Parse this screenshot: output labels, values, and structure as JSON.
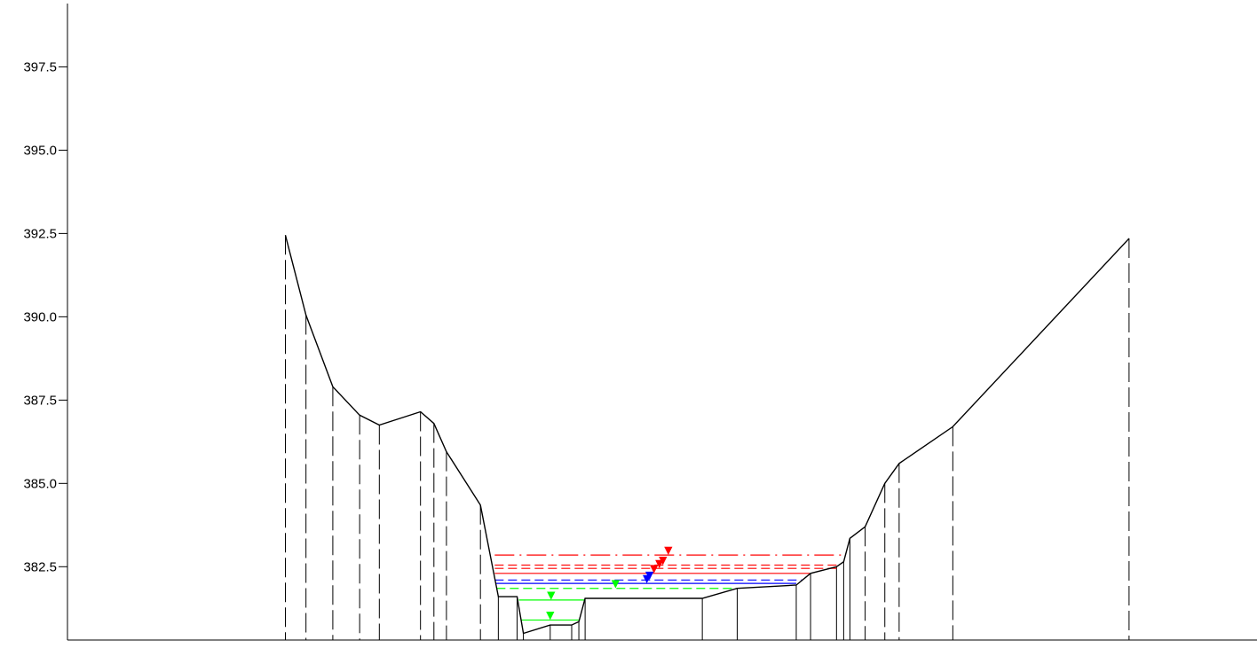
{
  "chart_data": {
    "type": "area",
    "title": "",
    "xlabel": "",
    "ylabel": "",
    "ylim": [
      380.3,
      399.4
    ],
    "xlim": [
      -65,
      1340
    ],
    "grid": false,
    "yticks": [
      {
        "value": 382.5,
        "label": "382.5"
      },
      {
        "value": 385.0,
        "label": "385.0"
      },
      {
        "value": 387.5,
        "label": "387.5"
      },
      {
        "value": 390.0,
        "label": "390.0"
      },
      {
        "value": 392.5,
        "label": "392.5"
      },
      {
        "value": 395.0,
        "label": "395.0"
      },
      {
        "value": 397.5,
        "label": "397.5"
      }
    ],
    "ground_profile": {
      "color": "#000000",
      "points": [
        {
          "x": 254,
          "y": 392.45
        },
        {
          "x": 277,
          "y": 390.05
        },
        {
          "x": 307,
          "y": 387.9
        },
        {
          "x": 337,
          "y": 387.05
        },
        {
          "x": 359,
          "y": 386.75
        },
        {
          "x": 405,
          "y": 387.15
        },
        {
          "x": 420,
          "y": 386.8
        },
        {
          "x": 434,
          "y": 385.95
        },
        {
          "x": 472,
          "y": 384.35
        },
        {
          "x": 492,
          "y": 381.6
        },
        {
          "x": 513,
          "y": 381.6
        },
        {
          "x": 520,
          "y": 380.5
        },
        {
          "x": 550,
          "y": 380.75
        },
        {
          "x": 574,
          "y": 380.75
        },
        {
          "x": 582,
          "y": 380.85
        },
        {
          "x": 589,
          "y": 381.55
        },
        {
          "x": 720,
          "y": 381.55
        },
        {
          "x": 759,
          "y": 381.85
        },
        {
          "x": 825,
          "y": 381.95
        },
        {
          "x": 841,
          "y": 382.3
        },
        {
          "x": 870,
          "y": 382.5
        },
        {
          "x": 878,
          "y": 382.65
        },
        {
          "x": 885,
          "y": 383.35
        },
        {
          "x": 902,
          "y": 383.7
        },
        {
          "x": 924,
          "y": 385.0
        },
        {
          "x": 940,
          "y": 385.6
        },
        {
          "x": 1000,
          "y": 386.7
        },
        {
          "x": 1197,
          "y": 392.35
        }
      ]
    },
    "station_lines": [
      {
        "x": 254,
        "style": "dashdot"
      },
      {
        "x": 277,
        "style": "dashdot"
      },
      {
        "x": 307,
        "style": "dashdot"
      },
      {
        "x": 337,
        "style": "dashdot"
      },
      {
        "x": 359,
        "style": "dashdot"
      },
      {
        "x": 405,
        "style": "dashdot"
      },
      {
        "x": 420,
        "style": "dashdot"
      },
      {
        "x": 434,
        "style": "dashdot"
      },
      {
        "x": 472,
        "style": "dashdot"
      },
      {
        "x": 492,
        "style": "solid"
      },
      {
        "x": 513,
        "style": "solid"
      },
      {
        "x": 520,
        "style": "solid"
      },
      {
        "x": 550,
        "style": "solid"
      },
      {
        "x": 574,
        "style": "solid"
      },
      {
        "x": 582,
        "style": "solid"
      },
      {
        "x": 589,
        "style": "solid"
      },
      {
        "x": 720,
        "style": "solid"
      },
      {
        "x": 759,
        "style": "solid"
      },
      {
        "x": 825,
        "style": "solid"
      },
      {
        "x": 841,
        "style": "solid"
      },
      {
        "x": 870,
        "style": "solid"
      },
      {
        "x": 878,
        "style": "solid"
      },
      {
        "x": 885,
        "style": "solid"
      },
      {
        "x": 902,
        "style": "dashdot"
      },
      {
        "x": 924,
        "style": "dashdot"
      },
      {
        "x": 940,
        "style": "dashdot"
      },
      {
        "x": 1000,
        "style": "dashdot"
      },
      {
        "x": 1197,
        "style": "dashdot"
      }
    ],
    "water_levels": [
      {
        "y": 382.85,
        "x_start": 488,
        "x_end": 880,
        "color": "#ff0000",
        "style": "dashdot",
        "marker_x": 682
      },
      {
        "y": 382.55,
        "x_start": 488,
        "x_end": 873,
        "color": "#ff0000",
        "style": "dashed",
        "marker_x": 676
      },
      {
        "y": 382.45,
        "x_start": 488,
        "x_end": 870,
        "color": "#ff0000",
        "style": "dashed",
        "marker_x": 672
      },
      {
        "y": 382.3,
        "x_start": 488,
        "x_end": 840,
        "color": "#ff0000",
        "style": "solid",
        "marker_x": 666
      },
      {
        "y": 382.1,
        "x_start": 488,
        "x_end": 832,
        "color": "#0000ff",
        "style": "dashed",
        "marker_x": 661
      },
      {
        "y": 382.0,
        "x_start": 489,
        "x_end": 825,
        "color": "#0000ff",
        "style": "solid",
        "marker_x": 658
      },
      {
        "y": 381.85,
        "x_start": 490,
        "x_end": 759,
        "color": "#00ff00",
        "style": "dashed",
        "marker_x": 623
      },
      {
        "y": 381.5,
        "x_start": 515,
        "x_end": 589,
        "color": "#00ff00",
        "style": "solid",
        "marker_x": 551
      },
      {
        "y": 380.9,
        "x_start": 518,
        "x_end": 582,
        "color": "#00ff00",
        "style": "solid",
        "marker_x": 550
      }
    ]
  }
}
